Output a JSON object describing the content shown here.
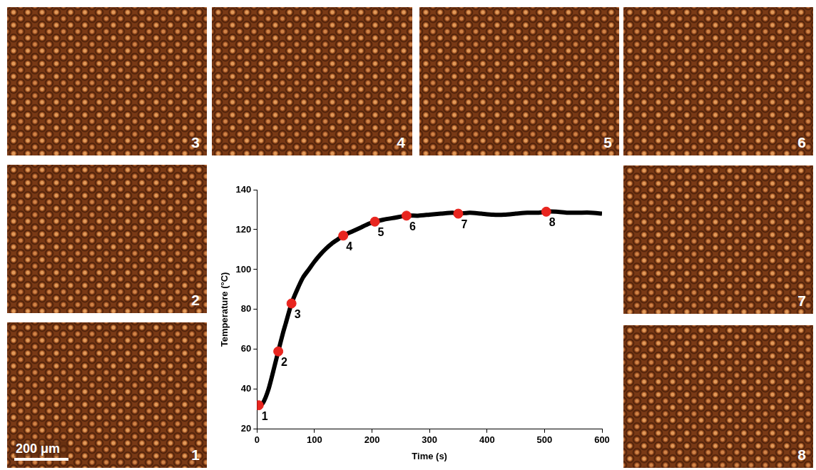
{
  "chart_data": {
    "type": "line",
    "x_label": "Time (s)",
    "y_label": "Temperature (°C)",
    "xlim": [
      0,
      600
    ],
    "xticks": [
      0,
      100,
      200,
      300,
      400,
      500,
      600
    ],
    "ylim": [
      20,
      140
    ],
    "yticks": [
      20,
      40,
      60,
      80,
      100,
      120,
      140
    ],
    "grid": false,
    "series": [
      {
        "type": "line",
        "color": "#000000",
        "line_style": "solid",
        "x": [
          0,
          10,
          20,
          30,
          37,
          45,
          50,
          60,
          70,
          80,
          90,
          100,
          110,
          120,
          130,
          140,
          150,
          165,
          180,
          195,
          205,
          220,
          240,
          260,
          280,
          300,
          320,
          340,
          350,
          370,
          390,
          410,
          430,
          450,
          470,
          490,
          503,
          520,
          540,
          560,
          580,
          600
        ],
        "values": [
          31,
          33,
          40,
          51,
          59,
          68,
          73,
          83,
          90,
          96,
          100,
          104,
          107.5,
          110.5,
          113,
          115,
          117,
          119,
          121,
          123,
          124,
          125,
          126,
          127,
          127,
          127.5,
          128,
          128.5,
          128,
          128.5,
          128,
          127.5,
          127.5,
          128,
          128.5,
          128.5,
          129,
          129,
          128.5,
          128.5,
          128.5,
          128
        ]
      },
      {
        "type": "scatter",
        "color": "#e8251f",
        "marker": "circle",
        "x": [
          3,
          37,
          60,
          150,
          205,
          260,
          350,
          503
        ],
        "values": [
          32,
          59,
          83,
          117,
          124,
          127,
          128,
          129
        ],
        "point_labels": [
          "1",
          "2",
          "3",
          "4",
          "5",
          "6",
          "7",
          "8"
        ]
      }
    ]
  },
  "panels": [
    "1",
    "2",
    "3",
    "4",
    "5",
    "6",
    "7",
    "8"
  ],
  "scale_bar": "200 μm"
}
